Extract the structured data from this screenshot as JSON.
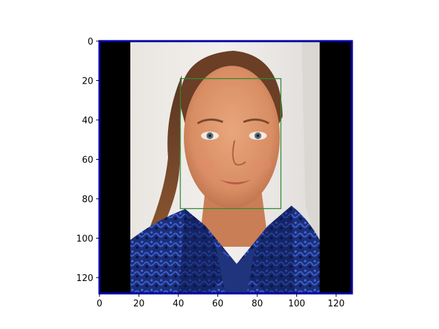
{
  "chart_data": {
    "type": "image",
    "title": "",
    "xlabel": "",
    "ylabel": "",
    "xlim": [
      0,
      128
    ],
    "ylim": [
      128,
      0
    ],
    "x_ticks": [
      0,
      20,
      40,
      60,
      80,
      100,
      120
    ],
    "y_ticks": [
      0,
      20,
      40,
      60,
      80,
      100,
      120
    ],
    "image": {
      "description": "portrait photo of a woman with pulled-back auburn hair wearing a dark blue patterned jacket",
      "content_x_range": [
        15.5,
        111.5
      ],
      "padding_color": "#000000"
    },
    "border_color": "#0000aa",
    "bounding_box": {
      "label": "face",
      "x_min": 41,
      "y_min": 19,
      "x_max": 92,
      "y_max": 85,
      "color": "#2e8b2e"
    }
  }
}
